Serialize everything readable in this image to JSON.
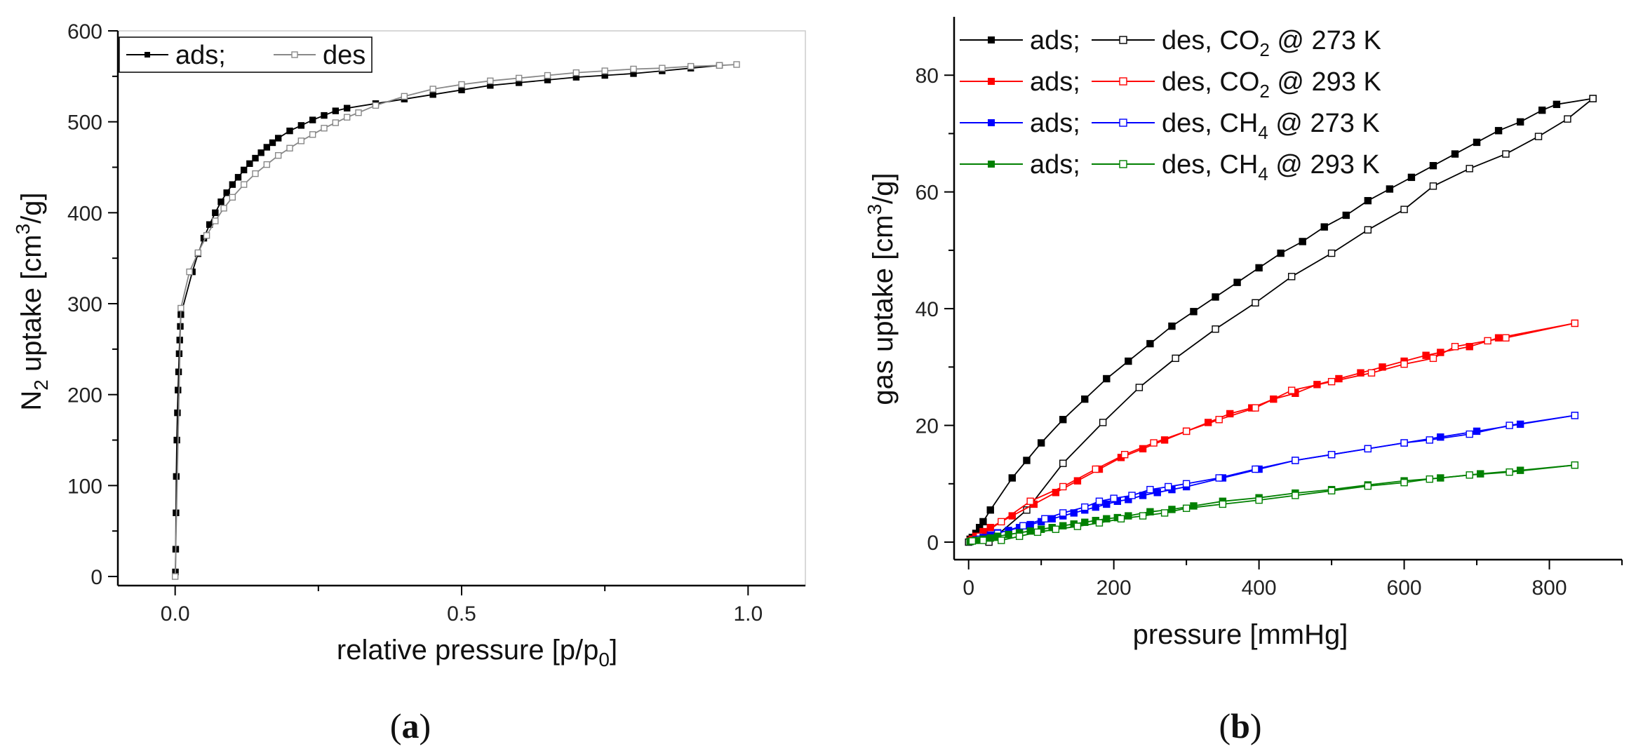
{
  "chart_data": [
    {
      "type": "scatter",
      "panel_label": "(a)",
      "panel_letter": "a",
      "xlabel": "relative pressure [p/p0]",
      "xlabel_parts": {
        "main": "relative pressure [p/p",
        "sub": "0",
        "end": "]"
      },
      "ylabel": "N2 uptake [cm3/g]",
      "ylabel_parts": {
        "pre": "N",
        "sub": "2",
        "mid": " uptake [cm",
        "sup": "3",
        "end": "/g]"
      },
      "xlim": [
        -0.1,
        1.1
      ],
      "ylim": [
        -10,
        600
      ],
      "xticks": [
        0.0,
        0.5,
        1.0
      ],
      "xtick_labels": [
        "0.0",
        "0.5",
        "1.0"
      ],
      "yticks": [
        0,
        100,
        200,
        300,
        400,
        500,
        600
      ],
      "ytick_labels": [
        "0",
        "100",
        "200",
        "300",
        "400",
        "500",
        "600"
      ],
      "legend": {
        "entries": [
          "ads;",
          "des"
        ],
        "placement": "top-left"
      },
      "series": [
        {
          "name": "ads",
          "color": "#000000",
          "filled": true,
          "x": [
            0.0005,
            0.001,
            0.0015,
            0.002,
            0.003,
            0.004,
            0.005,
            0.006,
            0.007,
            0.008,
            0.009,
            0.01,
            0.03,
            0.04,
            0.05,
            0.06,
            0.07,
            0.08,
            0.09,
            0.1,
            0.11,
            0.12,
            0.13,
            0.14,
            0.15,
            0.16,
            0.17,
            0.18,
            0.2,
            0.22,
            0.24,
            0.26,
            0.28,
            0.3,
            0.35,
            0.4,
            0.45,
            0.5,
            0.55,
            0.6,
            0.65,
            0.7,
            0.75,
            0.8,
            0.85,
            0.9,
            0.95
          ],
          "y": [
            5,
            30,
            70,
            110,
            150,
            180,
            205,
            225,
            245,
            260,
            275,
            288,
            335,
            355,
            372,
            387,
            400,
            412,
            422,
            431,
            439,
            447,
            454,
            460,
            466,
            472,
            477,
            482,
            490,
            496,
            502,
            507,
            512,
            515,
            520,
            525,
            530,
            535,
            540,
            543,
            546,
            549,
            551,
            553,
            556,
            559,
            562
          ]
        },
        {
          "name": "des",
          "color": "#888888",
          "filled": false,
          "x": [
            0.0,
            0.01,
            0.025,
            0.04,
            0.055,
            0.07,
            0.085,
            0.1,
            0.12,
            0.14,
            0.16,
            0.18,
            0.2,
            0.22,
            0.24,
            0.26,
            0.28,
            0.3,
            0.32,
            0.35,
            0.4,
            0.45,
            0.5,
            0.55,
            0.6,
            0.65,
            0.7,
            0.75,
            0.8,
            0.85,
            0.9,
            0.95,
            0.98
          ],
          "y": [
            0,
            295,
            335,
            356,
            375,
            391,
            405,
            417,
            431,
            443,
            453,
            463,
            471,
            479,
            486,
            493,
            499,
            505,
            510,
            518,
            528,
            536,
            541,
            545,
            548,
            551,
            554,
            556,
            558,
            559,
            561,
            562,
            563
          ]
        }
      ]
    },
    {
      "type": "scatter",
      "panel_label": "(b)",
      "panel_letter": "b",
      "xlabel": "pressure [mmHg]",
      "ylabel": "gas uptake [cm3/g]",
      "ylabel_parts": {
        "pre": "gas uptake [cm",
        "sup": "3",
        "end": "/g]"
      },
      "xlim": [
        -20,
        900
      ],
      "ylim": [
        -3,
        90
      ],
      "xticks": [
        0,
        200,
        400,
        600,
        800
      ],
      "xtick_labels": [
        "0",
        "200",
        "400",
        "600",
        "800"
      ],
      "yticks": [
        0,
        20,
        40,
        60,
        80
      ],
      "ytick_labels": [
        "0",
        "20",
        "40",
        "60",
        "80"
      ],
      "legend": {
        "placement": "top-left",
        "entries": [
          {
            "ads": "ads;",
            "des": "des, CO",
            "sub": "2",
            "tail": " @ 273 K",
            "color": "#000000"
          },
          {
            "ads": "ads;",
            "des": "des, CO",
            "sub": "2",
            "tail": " @ 293 K",
            "color": "#ff0000"
          },
          {
            "ads": "ads;",
            "des": "des, CH",
            "sub": "4",
            "tail": " @ 273 K",
            "color": "#0000ff"
          },
          {
            "ads": "ads;",
            "des": "des, CH",
            "sub": "4",
            "tail": " @ 293 K",
            "color": "#008000"
          }
        ]
      },
      "series": [
        {
          "name": "ads CO2 273 K",
          "color": "#000000",
          "filled": true,
          "x": [
            2,
            5,
            10,
            15,
            20,
            30,
            60,
            80,
            100,
            130,
            160,
            190,
            220,
            250,
            280,
            310,
            340,
            370,
            400,
            430,
            460,
            490,
            520,
            550,
            580,
            610,
            640,
            670,
            700,
            730,
            760,
            790,
            810,
            860
          ],
          "y": [
            0.5,
            0.8,
            1.5,
            2.5,
            3.5,
            5.5,
            11,
            14,
            17,
            21,
            24.5,
            28,
            31,
            34,
            37,
            39.5,
            42,
            44.5,
            47,
            49.5,
            51.5,
            54,
            56,
            58.5,
            60.5,
            62.5,
            64.5,
            66.5,
            68.5,
            70.5,
            72,
            74,
            75,
            76
          ]
        },
        {
          "name": "des CO2 273 K",
          "color": "#000000",
          "filled": false,
          "x": [
            860,
            825,
            785,
            740,
            690,
            640,
            600,
            550,
            500,
            445,
            395,
            340,
            285,
            235,
            185,
            130,
            80,
            28,
            0
          ],
          "y": [
            76,
            72.5,
            69.5,
            66.5,
            64,
            61,
            57,
            53.5,
            49.5,
            45.5,
            41,
            36.5,
            31.5,
            26.5,
            20.5,
            13.5,
            5.5,
            0,
            0
          ]
        },
        {
          "name": "ads CO2 293 K",
          "color": "#ff0000",
          "filled": true,
          "x": [
            2,
            5,
            10,
            20,
            30,
            60,
            90,
            120,
            150,
            180,
            210,
            240,
            270,
            300,
            330,
            360,
            390,
            420,
            450,
            480,
            510,
            540,
            570,
            600,
            630,
            650,
            690,
            730,
            835
          ],
          "y": [
            0.2,
            0.5,
            1,
            1.8,
            2.5,
            4.5,
            6.5,
            8.5,
            10.5,
            12.5,
            14.5,
            16,
            17.5,
            19,
            20.5,
            22,
            23,
            24.5,
            25.5,
            27,
            28,
            29,
            30,
            31,
            32,
            32.5,
            33.5,
            35,
            37.5
          ]
        },
        {
          "name": "des CO2 293 K",
          "color": "#ff0000",
          "filled": false,
          "x": [
            835,
            740,
            715,
            670,
            640,
            600,
            555,
            500,
            445,
            395,
            345,
            300,
            255,
            215,
            175,
            130,
            85,
            45,
            15
          ],
          "y": [
            37.5,
            35,
            34.5,
            33.5,
            31.5,
            30.5,
            29,
            27.5,
            26,
            23,
            21,
            19,
            17,
            15,
            12.5,
            9.5,
            7,
            3.5,
            1
          ]
        },
        {
          "name": "ads CH4 273 K",
          "color": "#0000ff",
          "filled": true,
          "x": [
            2,
            5,
            10,
            20,
            30,
            40,
            55,
            70,
            85,
            100,
            115,
            130,
            145,
            160,
            175,
            190,
            205,
            220,
            240,
            260,
            280,
            300,
            350,
            400,
            450,
            500,
            550,
            600,
            650,
            700,
            760,
            835
          ],
          "y": [
            0.1,
            0.2,
            0.4,
            0.8,
            1.2,
            1.6,
            2,
            2.5,
            3,
            3.5,
            4,
            4.5,
            5,
            5.5,
            6,
            6.5,
            7,
            7.3,
            8,
            8.5,
            9,
            9.5,
            11,
            12.5,
            14,
            15,
            16,
            17,
            18,
            19,
            20.2,
            21.7
          ]
        },
        {
          "name": "des CH4 273 K",
          "color": "#0000ff",
          "filled": false,
          "x": [
            835,
            745,
            690,
            635,
            600,
            550,
            500,
            450,
            395,
            345,
            300,
            275,
            250,
            225,
            200,
            180,
            160,
            130,
            105,
            75,
            40,
            15
          ],
          "y": [
            21.7,
            20,
            18.5,
            17.5,
            17,
            16,
            15,
            14,
            12.5,
            11,
            10,
            9.5,
            9,
            8,
            7.5,
            7,
            6,
            5,
            4,
            2.8,
            1.5,
            0.5
          ]
        },
        {
          "name": "ads CH4 293 K",
          "color": "#008000",
          "filled": true,
          "x": [
            2,
            5,
            10,
            20,
            30,
            40,
            55,
            70,
            85,
            100,
            115,
            130,
            145,
            160,
            175,
            190,
            205,
            220,
            250,
            280,
            310,
            350,
            400,
            450,
            500,
            550,
            600,
            650,
            705,
            760,
            835
          ],
          "y": [
            0.1,
            0.2,
            0.3,
            0.5,
            0.7,
            1,
            1.3,
            1.6,
            1.9,
            2.2,
            2.5,
            2.8,
            3.1,
            3.4,
            3.7,
            4,
            4.2,
            4.5,
            5.2,
            5.6,
            6.2,
            7,
            7.6,
            8.4,
            9,
            9.8,
            10.5,
            11,
            11.7,
            12.3,
            13.2
          ]
        },
        {
          "name": "des CH4 293 K",
          "color": "#008000",
          "filled": false,
          "x": [
            835,
            745,
            690,
            635,
            600,
            550,
            500,
            450,
            400,
            350,
            300,
            270,
            240,
            210,
            180,
            150,
            120,
            95,
            70,
            45,
            20,
            5
          ],
          "y": [
            13.2,
            12,
            11.5,
            10.8,
            10.2,
            9.6,
            8.8,
            8,
            7.2,
            6.5,
            5.8,
            5,
            4.5,
            4,
            3.3,
            2.7,
            2.2,
            1.7,
            1,
            0.3,
            0.3,
            0.2
          ]
        }
      ]
    }
  ]
}
